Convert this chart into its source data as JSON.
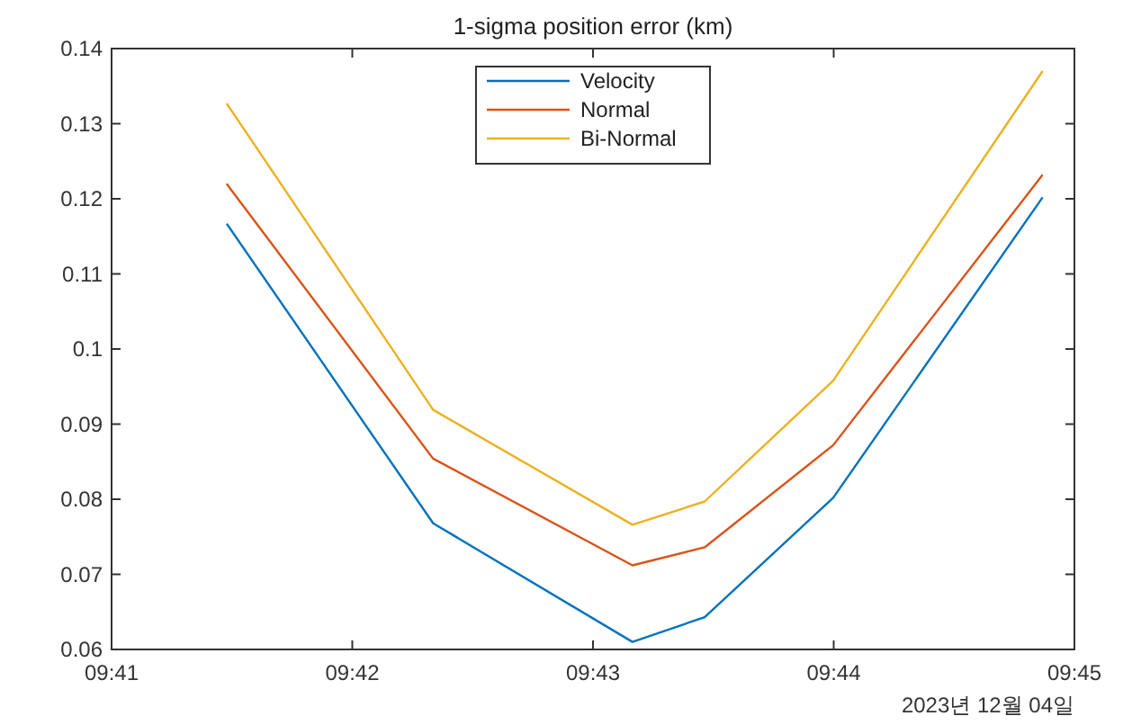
{
  "chart_data": {
    "type": "line",
    "title": "1-sigma position error (km)",
    "x": [
      9.6913,
      9.7056,
      9.7194,
      9.7244,
      9.7333,
      9.7478
    ],
    "series": [
      {
        "name": "Velocity",
        "color": "#0072bd",
        "values": [
          0.1167,
          0.0768,
          0.061,
          0.0643,
          0.0802,
          0.1202
        ]
      },
      {
        "name": "Normal",
        "color": "#d95319",
        "values": [
          0.122,
          0.0854,
          0.0712,
          0.0736,
          0.0872,
          0.1232
        ]
      },
      {
        "name": "Bi-Normal",
        "color": "#edb120",
        "values": [
          0.1327,
          0.0919,
          0.0766,
          0.0797,
          0.0958,
          0.137
        ]
      }
    ],
    "xlim": [
      9.683333,
      9.75
    ],
    "xticks": [
      {
        "value": 9.683333,
        "label": "09:41"
      },
      {
        "value": 9.7,
        "label": "09:42"
      },
      {
        "value": 9.716667,
        "label": "09:43"
      },
      {
        "value": 9.733333,
        "label": "09:44"
      },
      {
        "value": 9.75,
        "label": "09:45"
      }
    ],
    "ylim": [
      0.06,
      0.14
    ],
    "yticks": [
      0.06,
      0.07,
      0.08,
      0.09,
      0.1,
      0.11,
      0.12,
      0.13,
      0.14
    ],
    "annotations": [
      "2023년 12월 04일"
    ],
    "legend": "top",
    "grid": false,
    "marker": "none",
    "line_style": "solid"
  }
}
